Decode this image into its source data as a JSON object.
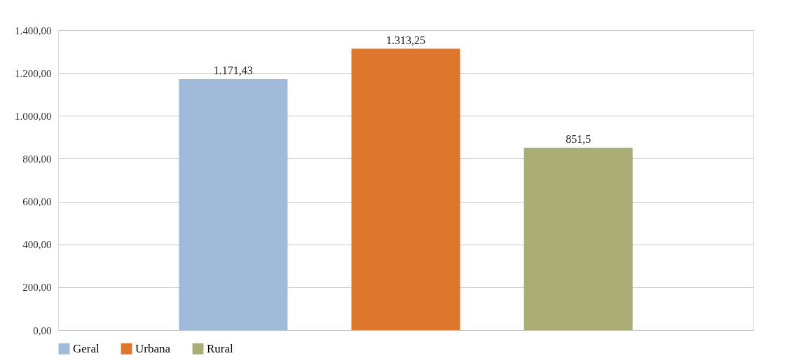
{
  "chart_data": {
    "type": "bar",
    "categories": [
      null
    ],
    "series": [
      {
        "name": "Geral",
        "color": "#a0bbda",
        "values": [
          1171.43
        ],
        "value_labels": [
          "1.171,43"
        ]
      },
      {
        "name": "Urbana",
        "color": "#dd772d",
        "values": [
          1313.25
        ],
        "value_labels": [
          "1.313,25"
        ]
      },
      {
        "name": "Rural",
        "color": "#aaad76",
        "values": [
          851.5
        ],
        "value_labels": [
          "851,5"
        ]
      }
    ],
    "ylim": [
      0,
      1400
    ],
    "yticks": [
      {
        "value": 0,
        "label": "0,00"
      },
      {
        "value": 200,
        "label": "200,00"
      },
      {
        "value": 400,
        "label": "400,00"
      },
      {
        "value": 600,
        "label": "600,00"
      },
      {
        "value": 800,
        "label": "800,00"
      },
      {
        "value": 1000,
        "label": "1.000,00"
      },
      {
        "value": 1200,
        "label": "1.200,00"
      },
      {
        "value": 1400,
        "label": "1.400,00"
      }
    ],
    "grid": "y",
    "legend": "bottom"
  }
}
